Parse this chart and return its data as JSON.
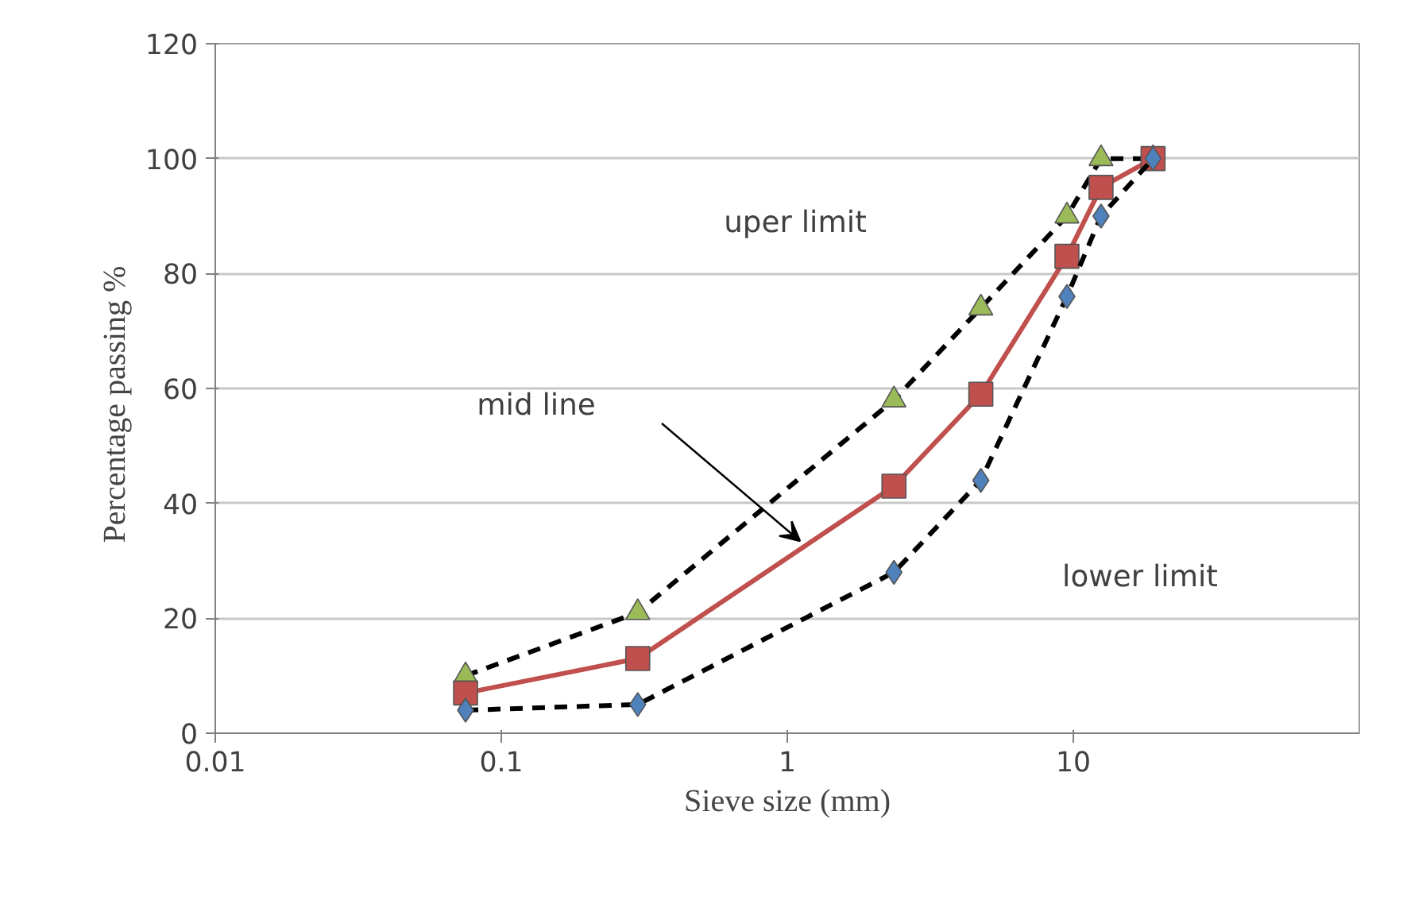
{
  "chart_data": {
    "type": "line",
    "xlabel": "Sieve size (mm)",
    "ylabel": "Percentage passing     %",
    "x": [
      0.075,
      0.3,
      2.36,
      4.75,
      9.5,
      12.5,
      19
    ],
    "series": [
      {
        "color": "#9bbb59",
        "marker": "triangle",
        "line_style": "dashed",
        "values": [
          10,
          21,
          58,
          74,
          90,
          100,
          100
        ]
      },
      {
        "color": "#c0504d",
        "marker": "square",
        "line_style": "solid",
        "values": [
          7,
          13,
          43,
          59,
          83,
          95,
          100
        ]
      },
      {
        "color": "#4f81bd",
        "marker": "diamond",
        "line_style": "dashed",
        "values": [
          4,
          5,
          28,
          44,
          76,
          90,
          100
        ]
      }
    ],
    "log": "x",
    "xlim": [
      0.01,
      100
    ],
    "xticks": [
      0.01,
      0.1,
      1,
      10
    ],
    "ylim": [
      0,
      120
    ],
    "yticks": [
      0,
      20,
      40,
      60,
      80,
      100,
      120
    ],
    "grid": "y",
    "annotations": [
      "uper limit",
      "mid line",
      "lower limit"
    ]
  }
}
